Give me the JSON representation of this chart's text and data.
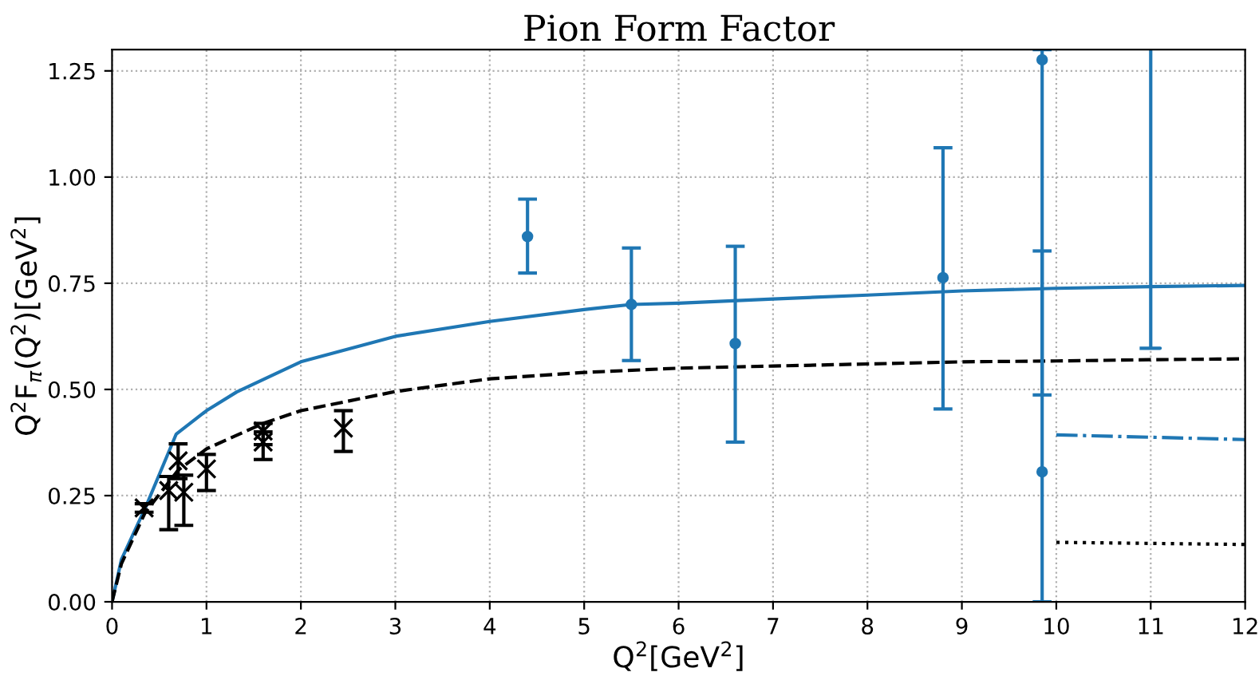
{
  "chart_data": {
    "type": "scatter",
    "title": "Pion Form Factor",
    "xlabel": "Q$^{2}$[GeV$^{2}$]",
    "ylabel": "Q$^{2}$F$_{π}$(Q$^{2}$)[GeV$^{2}$]",
    "xlim": [
      0,
      12
    ],
    "ylim": [
      0,
      1.3
    ],
    "xticks": [
      0,
      1,
      2,
      3,
      4,
      5,
      6,
      7,
      8,
      9,
      10,
      11,
      12
    ],
    "yticks": [
      {
        "value": 0,
        "label": "0.00"
      },
      0.25,
      {
        "value": 0.5,
        "label": "0.50"
      },
      0.75,
      {
        "value": 1,
        "label": "1.00"
      },
      1.25
    ],
    "grid": true,
    "series": [
      {
        "type": "line",
        "color": "#1f77b4",
        "line_style": "solid",
        "x": [
          0,
          0.1,
          0.35,
          0.68,
          1.0,
          1.32,
          2,
          3,
          4,
          5,
          5.5,
          6,
          7,
          8,
          9,
          10,
          11,
          12
        ],
        "values": [
          0,
          0.1,
          0.22,
          0.395,
          0.45,
          0.494,
          0.565,
          0.625,
          0.66,
          0.688,
          0.7,
          0.703,
          0.713,
          0.722,
          0.732,
          0.738,
          0.742,
          0.745
        ]
      },
      {
        "type": "line",
        "color": "#000000",
        "line_style": "dashed",
        "x": [
          0,
          0.1,
          0.35,
          0.7,
          1,
          1.6,
          2,
          3,
          4,
          5,
          6,
          7,
          8,
          9,
          10,
          11,
          12
        ],
        "values": [
          0,
          0.09,
          0.21,
          0.31,
          0.36,
          0.42,
          0.45,
          0.495,
          0.525,
          0.54,
          0.55,
          0.555,
          0.56,
          0.565,
          0.567,
          0.57,
          0.572
        ]
      },
      {
        "type": "line",
        "color": "#1f77b4",
        "line_style": "dashdot",
        "x": [
          10,
          12
        ],
        "values": [
          0.393,
          0.382
        ]
      },
      {
        "type": "line",
        "color": "#000000",
        "line_style": "dotted",
        "x": [
          10,
          12
        ],
        "values": [
          0.14,
          0.135
        ]
      },
      {
        "type": "line",
        "color": "#1f77b4",
        "line_style": "solid",
        "x": [
          10.9,
          11.1,
          11,
          11
        ],
        "values": [
          0.597,
          0.597,
          0.597,
          1.3
        ]
      },
      {
        "color": "#1f77b4",
        "marker": "circle",
        "x": [
          4.4,
          5.5,
          6.6,
          8.8,
          9.85,
          9.85
        ],
        "values": [
          0.86,
          0.7,
          0.608,
          0.763,
          1.276,
          0.306
        ],
        "errors": [
          [
            0.774,
            0.948
          ],
          [
            0.568,
            0.833
          ],
          [
            0.376,
            0.837
          ],
          [
            0.454,
            1.069
          ],
          [
            0.487,
            1.3
          ],
          [
            0,
            0.826
          ]
        ]
      },
      {
        "color": "#000000",
        "marker": "cross",
        "x": [
          0.34,
          0.6,
          0.7,
          0.76,
          1.0,
          1.6,
          1.6,
          2.45
        ],
        "values": [
          0.221,
          0.262,
          0.332,
          0.258,
          0.313,
          0.402,
          0.376,
          0.409
        ],
        "errors": [
          [
            0.211,
            0.231
          ],
          [
            0.17,
            0.295
          ],
          [
            0.29,
            0.372
          ],
          [
            0.18,
            0.298
          ],
          [
            0.262,
            0.347
          ],
          [
            0.37,
            0.42
          ],
          [
            0.335,
            0.4
          ],
          [
            0.354,
            0.45
          ]
        ]
      }
    ]
  }
}
